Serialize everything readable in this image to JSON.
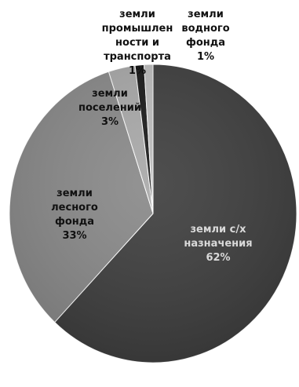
{
  "chart_data": {
    "type": "pie",
    "title": "",
    "start_angle_deg": 0,
    "direction": "clockwise",
    "slices": [
      {
        "label": [
          "земли с/х",
          "назначения"
        ],
        "value": 62,
        "value_text": "62%",
        "color": "#3f3f3f",
        "label_style": "light"
      },
      {
        "label": [
          "земли",
          "лесного",
          "фонда"
        ],
        "value": 33,
        "value_text": "33%",
        "color": "#8a8a8a",
        "label_style": "dark"
      },
      {
        "label": [
          "земли",
          "поселений"
        ],
        "value": 3,
        "value_text": "3%",
        "color": "#a9a9a9",
        "label_style": "dark"
      },
      {
        "label": [
          "земли",
          "промышлен",
          "ности и",
          "транспорта"
        ],
        "value": 1,
        "value_text": "1%",
        "color": "#1a1a1a",
        "label_style": "dark"
      },
      {
        "label": [
          "земли",
          "водного",
          "фонда"
        ],
        "value": 1,
        "value_text": "1%",
        "color": "#bdbdbd",
        "label_style": "dark"
      }
    ]
  }
}
